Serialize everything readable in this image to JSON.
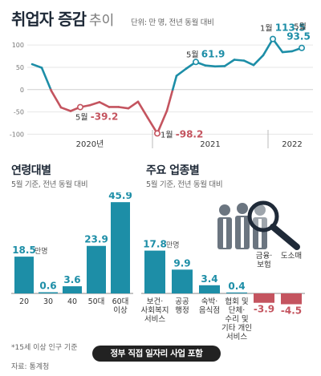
{
  "title": "취업자 증감",
  "title_sub": "추이",
  "unit_note": "단위: 만 명, 전년 동월 대비",
  "footnote": "*15세 이상 인구 기준",
  "source": "자료: 통계청",
  "banner": "정부 직접 일자리 사업 포함",
  "colors": {
    "teal": "#1d8ea7",
    "red": "#c4545f",
    "navy": "#1f2a38"
  },
  "chart_data": [
    {
      "type": "line",
      "title": "취업자 증감 추이",
      "unit": "만 명",
      "y_ticks": [
        "100",
        "50",
        "0",
        "-50",
        "-100"
      ],
      "ylim": [
        -110,
        120
      ],
      "x_year_labels": [
        "2020년",
        "2021",
        "2022"
      ],
      "series": [
        {
          "values": [
            57,
            49,
            -3,
            -40,
            -48,
            -39.2,
            -35,
            -28,
            -39,
            -39,
            -42,
            -27,
            -63,
            -98.2,
            -47.3,
            31,
            47,
            62,
            54,
            52,
            52.7,
            67,
            65,
            55,
            77,
            113.5,
            84,
            86,
            93.5
          ]
        }
      ],
      "annotations": [
        {
          "label": "5월",
          "value": "-39.2"
        },
        {
          "label": "1월",
          "value": "-98.2"
        },
        {
          "label": "5월",
          "value": "61.9"
        },
        {
          "label": "1월",
          "value": "113.5"
        },
        {
          "label": "5월",
          "value": "93.5"
        }
      ]
    },
    {
      "type": "bar",
      "title": "연령대별",
      "subtitle": "5월 기준, 전년 동월 대비",
      "unit": "만명",
      "categories": [
        "20",
        "30",
        "40",
        "50대",
        "60대\n이상"
      ],
      "values": [
        18.5,
        0.6,
        3.6,
        23.9,
        45.9
      ],
      "labels": [
        "18.5",
        "0.6",
        "3.6",
        "23.9",
        "45.9"
      ]
    },
    {
      "type": "bar",
      "title": "주요 업종별",
      "subtitle": "5월 기준, 전년 동월 대비",
      "unit": "만명",
      "categories": [
        "보건·\n사회복지\n서비스",
        "공공\n행정",
        "숙박·\n음식점",
        "협회 및\n단체·\n수리 및\n기타 개인\n서비스",
        "금융·\n보험",
        "도소매"
      ],
      "values": [
        17.8,
        9.9,
        3.4,
        0.4,
        -3.9,
        -4.5
      ],
      "labels": [
        "17.8",
        "9.9",
        "3.4",
        "0.4",
        "-3.9",
        "-4.5"
      ]
    }
  ]
}
